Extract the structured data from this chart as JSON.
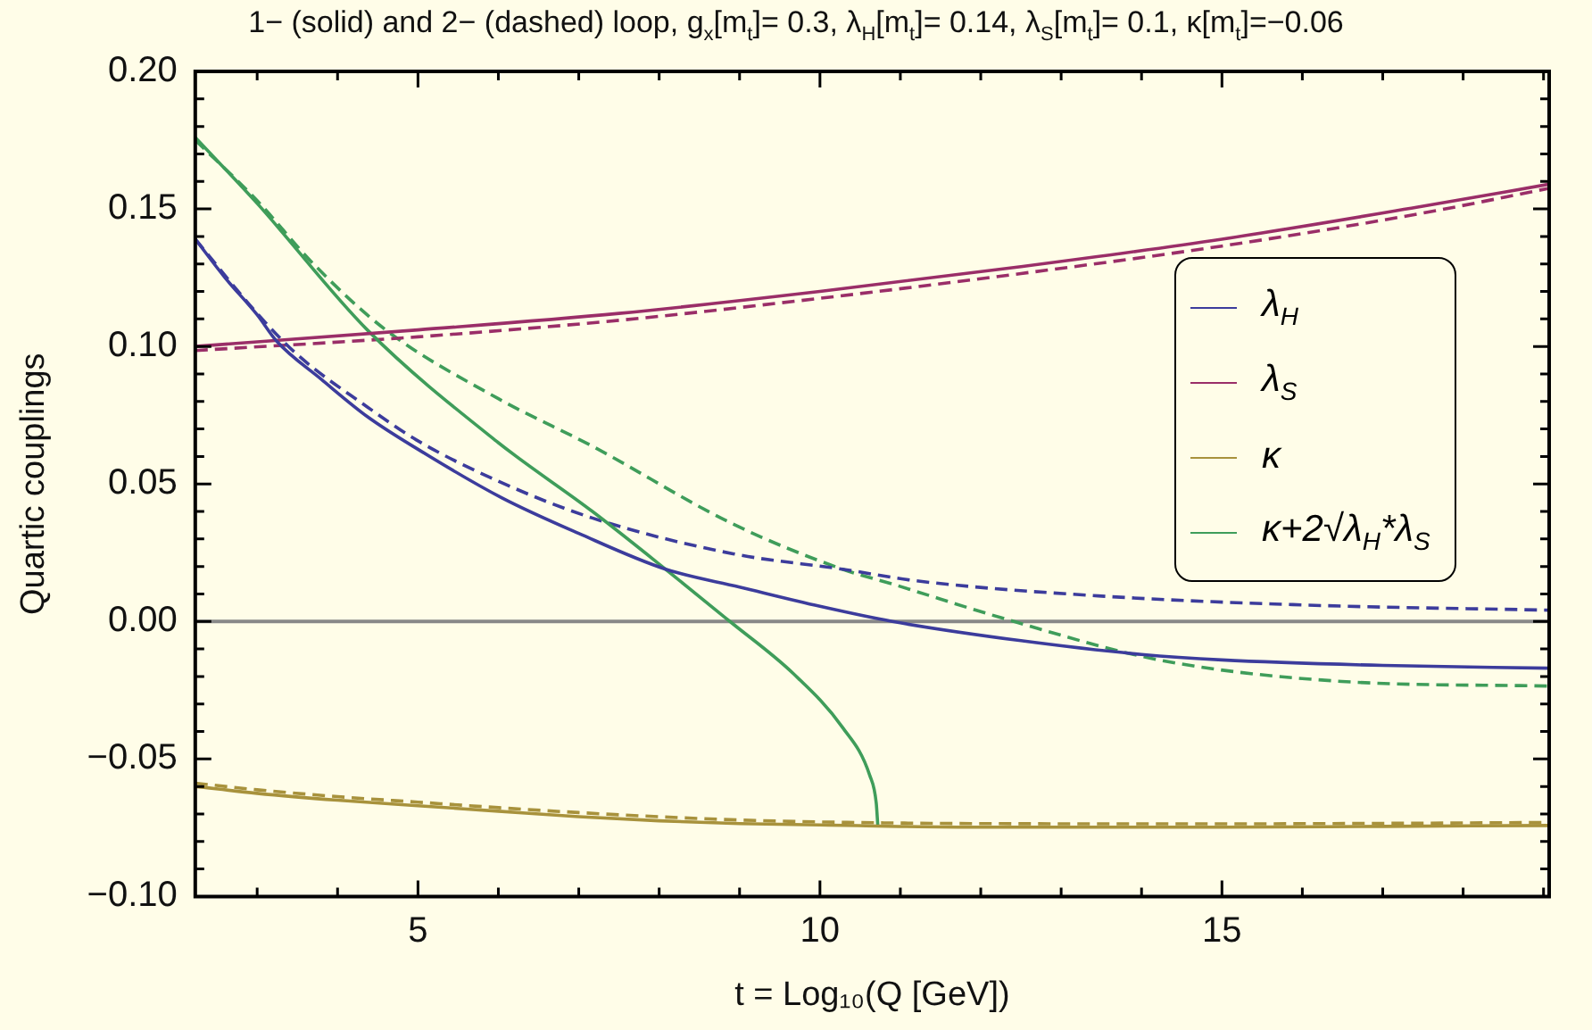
{
  "chart_data": {
    "type": "line",
    "title": "1− (solid) and 2− (dashed) loop, g$_{x}$[m$_{t}$]= 0.3, λ$_{H}$[m$_{t}$]= 0.14, λ$_{S}$[m$_{t}$]= 0.1, κ[m$_{t}$]=−0.06",
    "xlabel": "t = Log₁₀(Q [GeV])",
    "ylabel": "Quartic couplings",
    "xlim": [
      2.23,
      19.07
    ],
    "ylim": [
      -0.1,
      0.2
    ],
    "xticks": [
      {
        "value": 3,
        "label": null
      },
      {
        "value": 4,
        "label": null
      },
      5,
      {
        "value": 6,
        "label": null
      },
      {
        "value": 7,
        "label": null
      },
      {
        "value": 8,
        "label": null
      },
      {
        "value": 9,
        "label": null
      },
      10,
      {
        "value": 11,
        "label": null
      },
      {
        "value": 12,
        "label": null
      },
      {
        "value": 13,
        "label": null
      },
      {
        "value": 14,
        "label": null
      },
      15,
      {
        "value": 16,
        "label": null
      },
      {
        "value": 17,
        "label": null
      },
      {
        "value": 18,
        "label": null
      },
      {
        "value": 19,
        "label": null
      }
    ],
    "yticks": [
      {
        "value": -0.1,
        "label": "−0.10"
      },
      {
        "value": -0.09,
        "label": null
      },
      {
        "value": -0.08,
        "label": null
      },
      {
        "value": -0.07,
        "label": null
      },
      {
        "value": -0.06,
        "label": null
      },
      {
        "value": -0.05,
        "label": "−0.05"
      },
      {
        "value": -0.04,
        "label": null
      },
      {
        "value": -0.03,
        "label": null
      },
      {
        "value": -0.02,
        "label": null
      },
      {
        "value": -0.01,
        "label": null
      },
      {
        "value": 0,
        "label": "0.00"
      },
      {
        "value": 0.01,
        "label": null
      },
      {
        "value": 0.02,
        "label": null
      },
      {
        "value": 0.03,
        "label": null
      },
      {
        "value": 0.04,
        "label": null
      },
      {
        "value": 0.05,
        "label": "0.05"
      },
      {
        "value": 0.06,
        "label": null
      },
      {
        "value": 0.07,
        "label": null
      },
      {
        "value": 0.08,
        "label": null
      },
      {
        "value": 0.09,
        "label": null
      },
      {
        "value": 0.1,
        "label": "0.10"
      },
      {
        "value": 0.11,
        "label": null
      },
      {
        "value": 0.12,
        "label": null
      },
      {
        "value": 0.13,
        "label": null
      },
      {
        "value": 0.14,
        "label": null
      },
      {
        "value": 0.15,
        "label": "0.15"
      },
      {
        "value": 0.16,
        "label": null
      },
      {
        "value": 0.17,
        "label": null
      },
      {
        "value": 0.18,
        "label": null
      },
      {
        "value": 0.19,
        "label": null
      },
      {
        "value": 0.2,
        "label": "0.20"
      }
    ],
    "grid": false,
    "legend": "right",
    "marker": "none",
    "ref_lines": [
      {
        "axis": "y",
        "value": 0,
        "color": "#888888"
      }
    ],
    "series": [
      {
        "name": "λ$_{H}$",
        "color": "#3c3c9c",
        "line_style": "solid",
        "x": [
          2.23,
          2.6,
          3,
          3.24,
          3.8,
          4.37,
          5,
          6.04,
          7,
          8.08,
          9,
          10,
          10.9,
          12.5,
          14,
          15,
          17,
          19.07
        ],
        "values": [
          0.139,
          0.125,
          0.1115,
          0.102,
          0.088,
          0.0745,
          0.0626,
          0.045,
          0.032,
          0.019,
          0.0125,
          0.0055,
          0.0,
          -0.007,
          -0.012,
          -0.014,
          -0.016,
          -0.017
        ]
      },
      {
        "name": "λ$_{S}$",
        "color": "#9a2e68",
        "line_style": "solid",
        "x": [
          2.23,
          5,
          7.5,
          10,
          12.5,
          15,
          17.5,
          19.07
        ],
        "values": [
          0.1,
          0.106,
          0.112,
          0.12,
          0.129,
          0.139,
          0.151,
          0.159
        ]
      },
      {
        "name": "κ",
        "color": "#a8923c",
        "line_style": "solid",
        "x": [
          2.23,
          3,
          4,
          5,
          6,
          7,
          8,
          9,
          10,
          12,
          15,
          17,
          19.07
        ],
        "values": [
          -0.06,
          -0.0625,
          -0.065,
          -0.067,
          -0.069,
          -0.071,
          -0.0725,
          -0.0735,
          -0.074,
          -0.0748,
          -0.0748,
          -0.0745,
          -0.0742
        ]
      },
      {
        "name": "κ+2√λ$_{H}$*λ$_{S}$",
        "color": "#3f9d5a",
        "line_style": "solid",
        "x": [
          2.23,
          3,
          4.37,
          6,
          7.17,
          8.08,
          8.88,
          9.67,
          10.28,
          10.62,
          10.7,
          10.72
        ],
        "values": [
          0.176,
          0.152,
          0.106,
          0.065,
          0.04,
          0.019,
          0.0,
          -0.019,
          -0.0385,
          -0.056,
          -0.066,
          -0.0744
        ]
      },
      {
        "color": "#3c3c9c",
        "line_style": "dashed",
        "x": [
          2.23,
          3,
          3.5,
          4.37,
          4.98,
          6,
          7.17,
          8.92,
          10.28,
          11.19,
          13.46,
          16,
          19.07
        ],
        "values": [
          0.139,
          0.112,
          0.097,
          0.078,
          0.066,
          0.051,
          0.0376,
          0.0246,
          0.019,
          0.0148,
          0.0093,
          0.006,
          0.0041
        ]
      },
      {
        "color": "#9a2e68",
        "line_style": "dashed",
        "x": [
          2.23,
          5,
          7.5,
          10,
          12.5,
          15,
          17.5,
          19.07
        ],
        "values": [
          0.0985,
          0.1035,
          0.1095,
          0.1175,
          0.1265,
          0.1365,
          0.1485,
          0.1575
        ]
      },
      {
        "color": "#a8923c",
        "line_style": "dashed",
        "x": [
          2.23,
          3,
          4,
          5,
          6,
          7,
          8,
          9,
          10,
          12,
          15,
          17,
          19.07
        ],
        "values": [
          -0.0588,
          -0.0612,
          -0.0637,
          -0.0657,
          -0.0677,
          -0.0695,
          -0.071,
          -0.0722,
          -0.0729,
          -0.0735,
          -0.0736,
          -0.0734,
          -0.0731
        ]
      },
      {
        "color": "#3f9d5a",
        "line_style": "dashed",
        "x": [
          2.23,
          3,
          3.7,
          4.6,
          6,
          7.17,
          8.92,
          10.28,
          10.89,
          12.33,
          14.22,
          16.49,
          19.07
        ],
        "values": [
          0.175,
          0.153,
          0.13,
          0.106,
          0.081,
          0.0637,
          0.0354,
          0.019,
          0.0137,
          0.0007,
          -0.014,
          -0.0218,
          -0.0235
        ]
      }
    ]
  }
}
